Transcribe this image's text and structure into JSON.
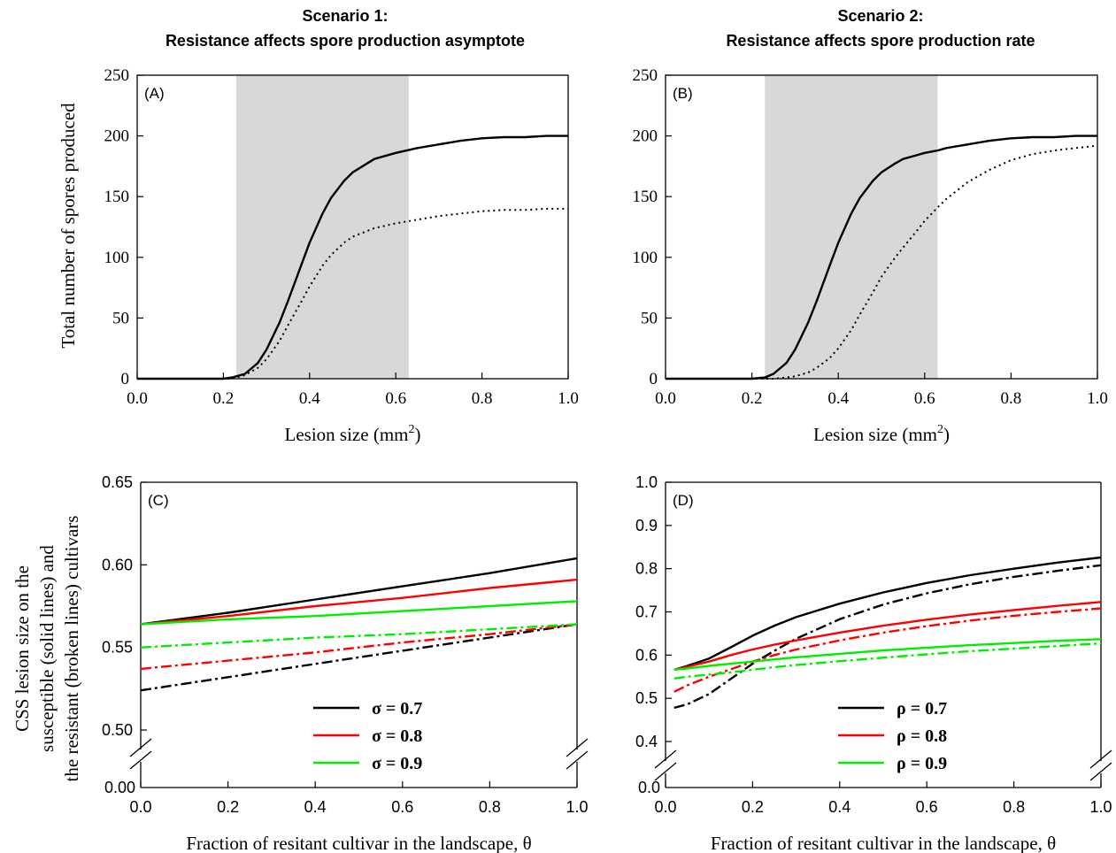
{
  "figure": {
    "titles": [
      [
        "Scenario 1:",
        "Resistance affects spore production asymptote"
      ],
      [
        "Scenario 2:",
        "Resistance affects spore production rate"
      ]
    ],
    "ylabel_top": "Total number of spores produced",
    "ylabel_bottom": [
      "CSS lesion size on the",
      "susceptible (solid lines) and",
      "the resistant (broken lines) cultivars"
    ]
  },
  "chart_data": [
    {
      "panel": "(A)",
      "type": "line",
      "xlabel": "Lesion size (mm2)",
      "xlim": [
        0,
        1
      ],
      "ylim": [
        0,
        250
      ],
      "xticks": [
        "0.0",
        "0.2",
        "0.4",
        "0.6",
        "0.8",
        "1.0"
      ],
      "yticks": [
        "0",
        "50",
        "100",
        "150",
        "200",
        "250"
      ],
      "shaded_region": [
        0.23,
        0.63
      ],
      "x": [
        0.0,
        0.2,
        0.22,
        0.25,
        0.28,
        0.3,
        0.33,
        0.35,
        0.38,
        0.4,
        0.43,
        0.45,
        0.48,
        0.5,
        0.55,
        0.6,
        0.65,
        0.7,
        0.75,
        0.8,
        0.85,
        0.9,
        0.95,
        1.0
      ],
      "series": [
        {
          "style": "solid",
          "values": [
            0,
            0,
            1,
            4,
            13,
            24,
            46,
            64,
            93,
            112,
            136,
            149,
            163,
            170,
            181,
            186,
            190,
            193,
            196,
            198,
            199,
            199,
            200,
            200
          ]
        },
        {
          "style": "dotted",
          "values": [
            0,
            0,
            0,
            3,
            9,
            16,
            31,
            44,
            63,
            76,
            93,
            102,
            112,
            117,
            124,
            128,
            131,
            134,
            136,
            138,
            139,
            139,
            140,
            140
          ]
        }
      ]
    },
    {
      "panel": "(B)",
      "type": "line",
      "xlabel": "Lesion size (mm2)",
      "xlim": [
        0,
        1
      ],
      "ylim": [
        0,
        250
      ],
      "xticks": [
        "0.0",
        "0.2",
        "0.4",
        "0.6",
        "0.8",
        "1.0"
      ],
      "yticks": [
        "0",
        "50",
        "100",
        "150",
        "200",
        "250"
      ],
      "shaded_region": [
        0.23,
        0.63
      ],
      "x": [
        0.0,
        0.2,
        0.23,
        0.25,
        0.28,
        0.3,
        0.33,
        0.35,
        0.38,
        0.4,
        0.43,
        0.45,
        0.48,
        0.5,
        0.53,
        0.55,
        0.58,
        0.6,
        0.63,
        0.65,
        0.7,
        0.75,
        0.8,
        0.85,
        0.9,
        0.95,
        1.0
      ],
      "series": [
        {
          "style": "solid",
          "values": [
            0,
            0,
            1,
            4,
            13,
            24,
            46,
            64,
            93,
            112,
            136,
            149,
            163,
            170,
            177,
            181,
            184,
            186,
            188,
            190,
            193,
            196,
            198,
            199,
            199,
            200,
            200
          ]
        },
        {
          "style": "dotted",
          "values": [
            0,
            0,
            0,
            0,
            1,
            2,
            5,
            9,
            17,
            25,
            40,
            53,
            71,
            84,
            99,
            108,
            121,
            130,
            141,
            148,
            162,
            172,
            180,
            185,
            188,
            190,
            192
          ]
        }
      ]
    },
    {
      "panel": "(C)",
      "type": "line",
      "xlabel": "Fraction of resitant cultivar in the landscape, θ",
      "xlim": [
        0,
        1
      ],
      "ylim": [
        0.5,
        0.65
      ],
      "axis_break": true,
      "xticks": [
        "0.0",
        "0.2",
        "0.4",
        "0.6",
        "0.8",
        "1.0"
      ],
      "yticks": [
        "0.00",
        "0.50",
        "0.55",
        "0.60",
        "0.65"
      ],
      "legend": [
        "σ = 0.7",
        "σ = 0.8",
        "σ = 0.9"
      ],
      "legend_position": "bottom-center",
      "x": [
        0,
        0.2,
        0.4,
        0.6,
        0.8,
        1.0
      ],
      "series": [
        {
          "name": "σ = 0.7",
          "color": "#000000",
          "style": "solid",
          "values": [
            0.564,
            0.571,
            0.579,
            0.587,
            0.595,
            0.604
          ]
        },
        {
          "name": "σ = 0.7",
          "color": "#000000",
          "style": "dashdot",
          "values": [
            0.524,
            0.532,
            0.54,
            0.548,
            0.556,
            0.564
          ]
        },
        {
          "name": "σ = 0.8",
          "color": "#ff0000",
          "style": "solid",
          "values": [
            0.564,
            0.569,
            0.575,
            0.58,
            0.586,
            0.591
          ]
        },
        {
          "name": "σ = 0.8",
          "color": "#ff0000",
          "style": "dashdot",
          "values": [
            0.537,
            0.542,
            0.547,
            0.553,
            0.558,
            0.564
          ]
        },
        {
          "name": "σ = 0.9",
          "color": "#00ee00",
          "style": "solid",
          "values": [
            0.564,
            0.567,
            0.569,
            0.572,
            0.575,
            0.578
          ]
        },
        {
          "name": "σ = 0.9",
          "color": "#00ee00",
          "style": "dashdot",
          "values": [
            0.55,
            0.553,
            0.556,
            0.558,
            0.561,
            0.564
          ]
        }
      ]
    },
    {
      "panel": "(D)",
      "type": "line",
      "xlabel": "Fraction of resitant cultivar in the landscape, θ",
      "xlim": [
        0,
        1
      ],
      "ylim": [
        0.4,
        1.0
      ],
      "axis_break": true,
      "xticks": [
        "0.0",
        "0.2",
        "0.4",
        "0.6",
        "0.8",
        "1.0"
      ],
      "yticks": [
        "0.0",
        "0.4",
        "0.5",
        "0.6",
        "0.7",
        "0.8",
        "0.9",
        "1.0"
      ],
      "legend": [
        "ρ = 0.7",
        "ρ = 0.8",
        "ρ = 0.9"
      ],
      "legend_position": "bottom-center",
      "x": [
        0.02,
        0.05,
        0.1,
        0.15,
        0.2,
        0.25,
        0.3,
        0.4,
        0.5,
        0.6,
        0.7,
        0.8,
        0.9,
        1.0
      ],
      "series": [
        {
          "name": "ρ = 0.7",
          "color": "#000000",
          "style": "solid",
          "values": [
            0.566,
            0.575,
            0.592,
            0.618,
            0.645,
            0.668,
            0.688,
            0.719,
            0.745,
            0.767,
            0.785,
            0.8,
            0.814,
            0.826
          ]
        },
        {
          "name": "ρ = 0.7",
          "color": "#000000",
          "style": "dashdot",
          "values": [
            0.478,
            0.486,
            0.51,
            0.545,
            0.58,
            0.61,
            0.638,
            0.683,
            0.717,
            0.743,
            0.764,
            0.781,
            0.795,
            0.808
          ]
        },
        {
          "name": "ρ = 0.8",
          "color": "#ff0000",
          "style": "solid",
          "values": [
            0.566,
            0.573,
            0.585,
            0.6,
            0.613,
            0.624,
            0.634,
            0.652,
            0.668,
            0.682,
            0.694,
            0.704,
            0.714,
            0.723
          ]
        },
        {
          "name": "ρ = 0.8",
          "color": "#ff0000",
          "style": "dashdot",
          "values": [
            0.515,
            0.53,
            0.55,
            0.567,
            0.585,
            0.6,
            0.613,
            0.634,
            0.652,
            0.667,
            0.68,
            0.691,
            0.7,
            0.708
          ]
        },
        {
          "name": "ρ = 0.9",
          "color": "#00ee00",
          "style": "solid",
          "values": [
            0.566,
            0.569,
            0.575,
            0.58,
            0.585,
            0.59,
            0.595,
            0.603,
            0.611,
            0.617,
            0.623,
            0.628,
            0.633,
            0.637
          ]
        },
        {
          "name": "ρ = 0.9",
          "color": "#00ee00",
          "style": "dashdot",
          "values": [
            0.546,
            0.55,
            0.555,
            0.56,
            0.566,
            0.572,
            0.577,
            0.586,
            0.594,
            0.602,
            0.609,
            0.615,
            0.621,
            0.627
          ]
        }
      ]
    }
  ]
}
